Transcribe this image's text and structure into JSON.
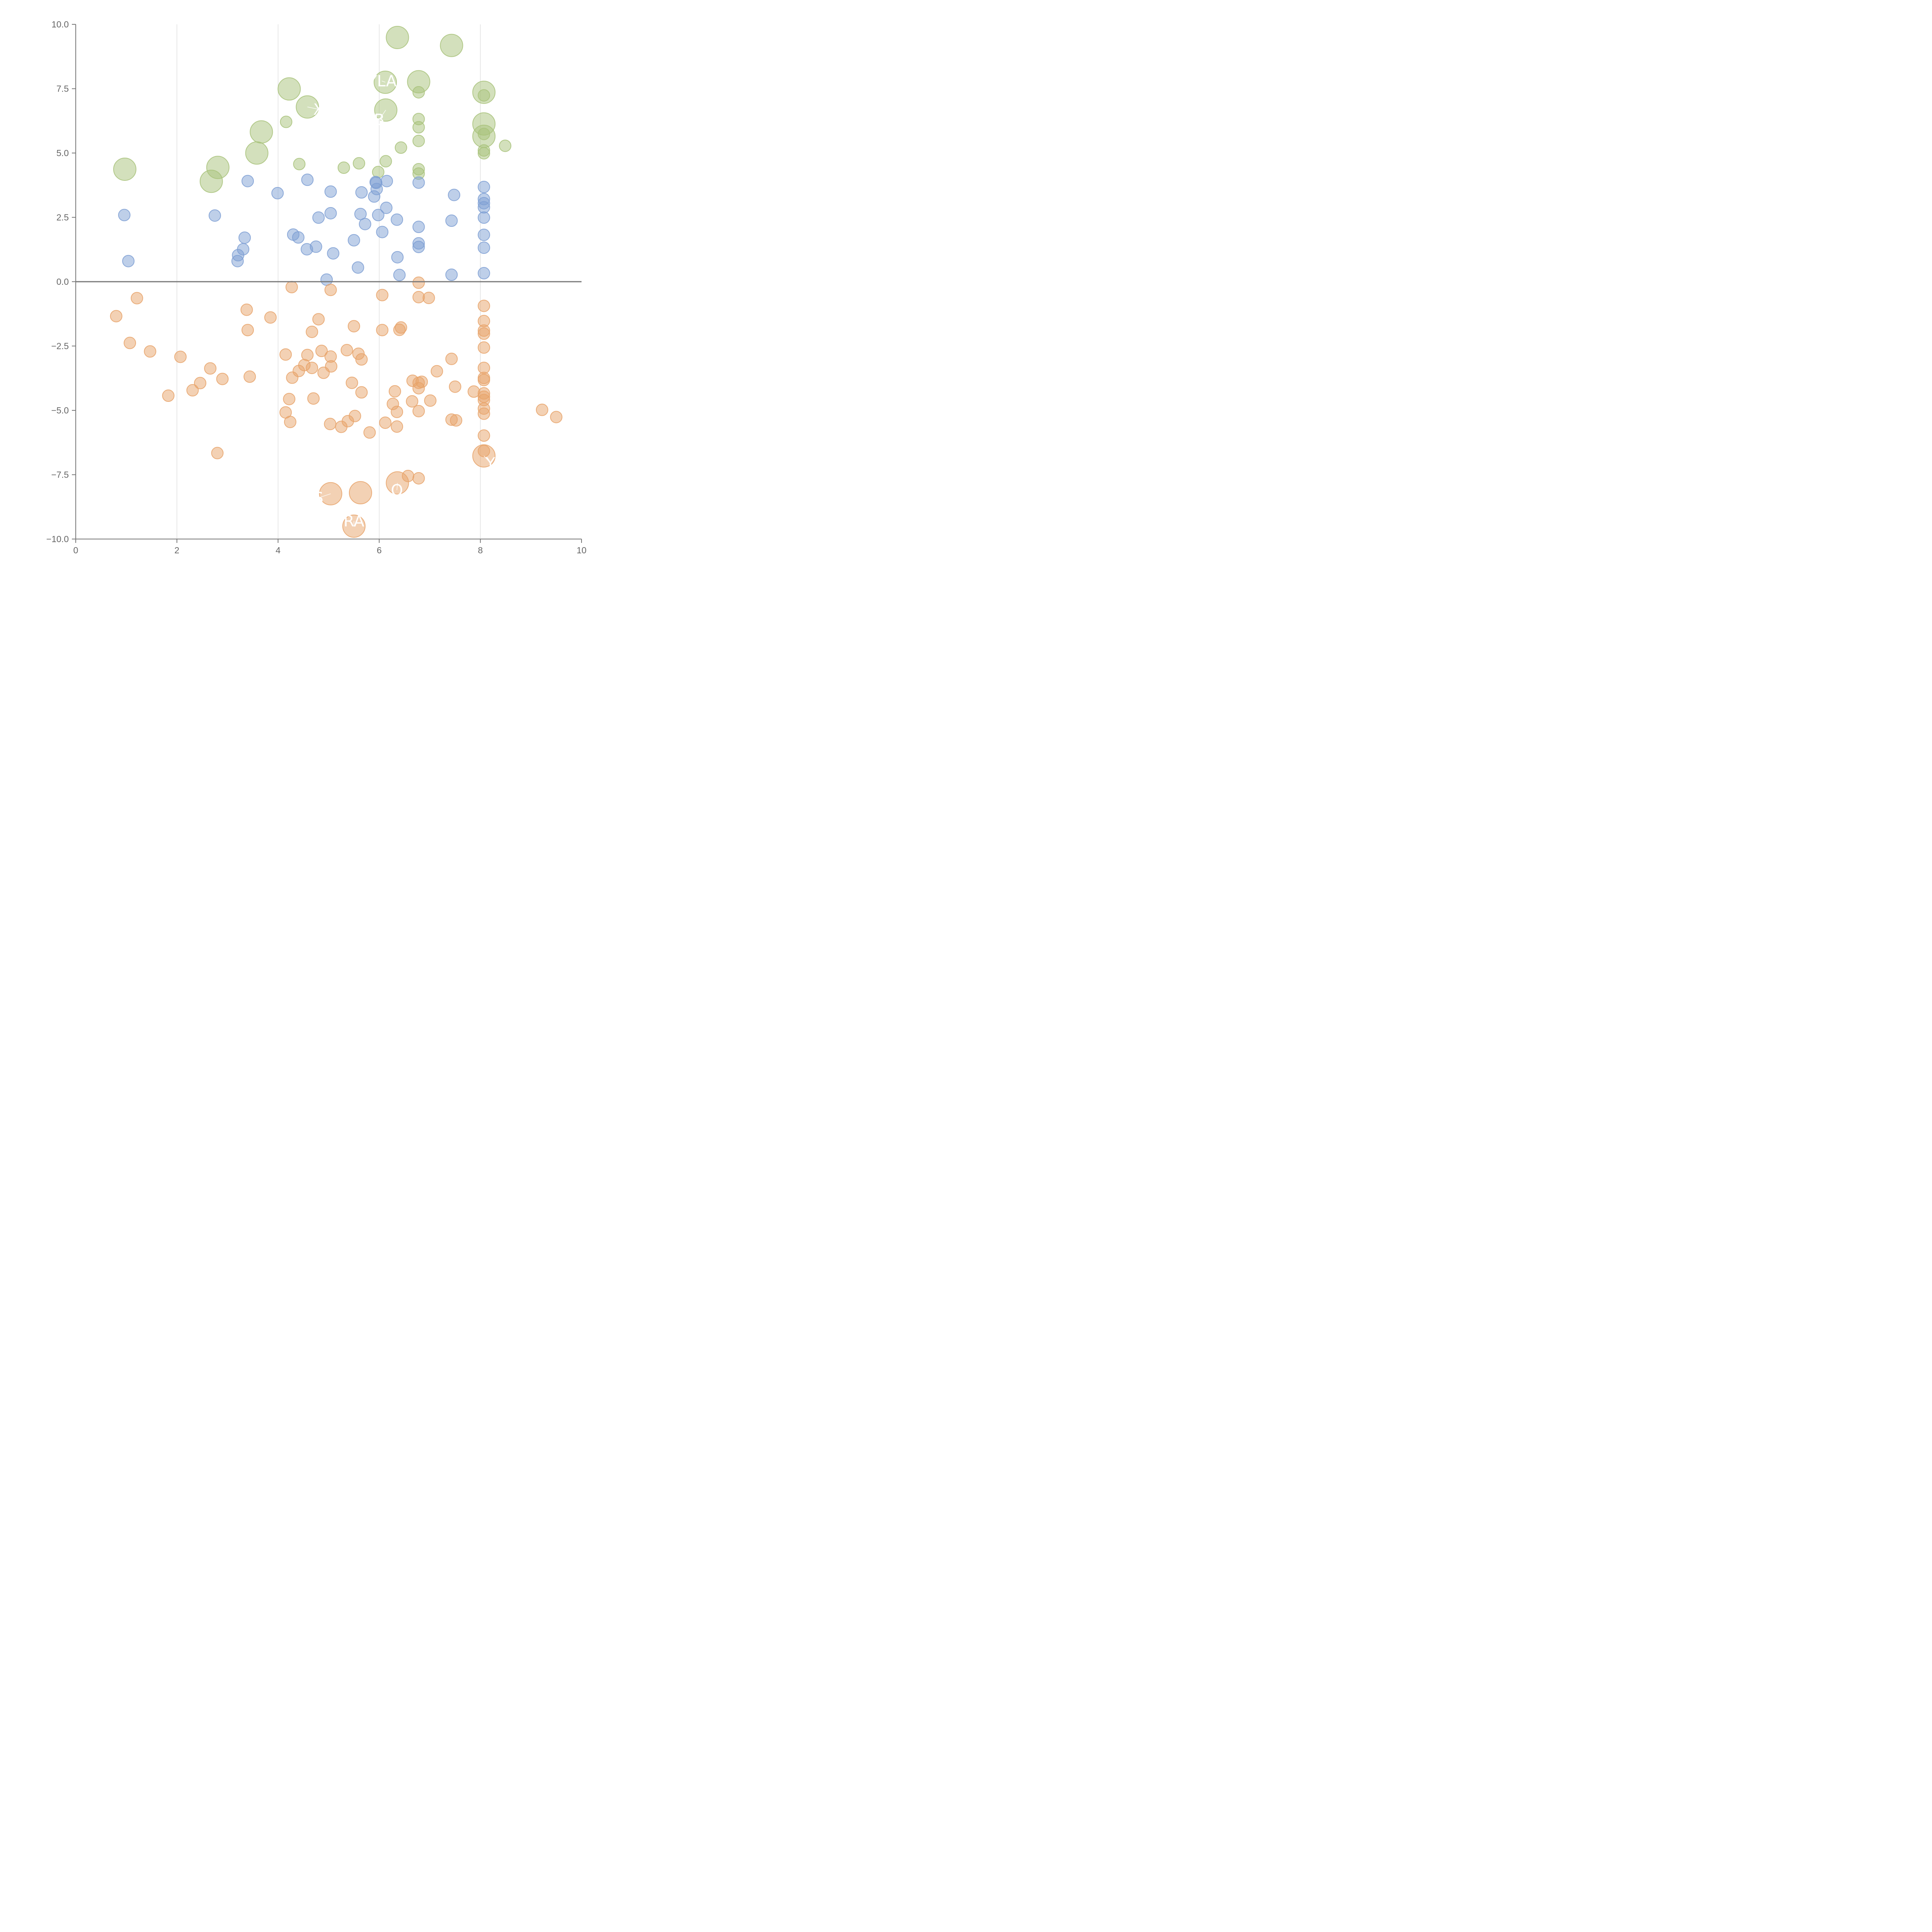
{
  "chart_data": {
    "type": "scatter",
    "xlim": [
      0,
      10
    ],
    "ylim": [
      -10,
      10
    ],
    "x_ticks": [
      0,
      2,
      4,
      6,
      8,
      10
    ],
    "x_tick_labels": [
      "0",
      "2",
      "4",
      "6",
      "8",
      "10"
    ],
    "y_ticks": [
      10,
      7.5,
      5,
      2.5,
      0,
      -2.5,
      -5,
      -7.5,
      -10
    ],
    "y_tick_labels": [
      "10.0",
      "7.5",
      "5.0",
      "2.5",
      "0.0",
      "−2.5",
      "−5.0",
      "−7.5",
      "−10.0"
    ],
    "vertical_grid_at": [
      2,
      4,
      6,
      8
    ],
    "horizontal_reference_line": 0,
    "series": [
      {
        "color": "#a8c27a",
        "points": [
          {
            "x": 0.97,
            "y": 4.37,
            "big": true
          },
          {
            "x": 2.68,
            "y": 3.9,
            "big": true
          },
          {
            "x": 2.81,
            "y": 4.44,
            "big": true
          },
          {
            "x": 3.58,
            "y": 5.0,
            "big": true
          },
          {
            "x": 3.67,
            "y": 5.82,
            "big": true
          },
          {
            "x": 4.16,
            "y": 6.21
          },
          {
            "x": 4.22,
            "y": 7.49,
            "big": true
          },
          {
            "x": 4.42,
            "y": 4.57
          },
          {
            "x": 4.58,
            "y": 6.79,
            "big": true
          },
          {
            "x": 5.3,
            "y": 4.43
          },
          {
            "x": 5.6,
            "y": 4.6
          },
          {
            "x": 5.98,
            "y": 4.26
          },
          {
            "x": 6.12,
            "y": 7.75,
            "big": true
          },
          {
            "x": 6.13,
            "y": 4.68
          },
          {
            "x": 6.13,
            "y": 6.67,
            "big": true
          },
          {
            "x": 6.36,
            "y": 9.49,
            "big": true
          },
          {
            "x": 6.43,
            "y": 5.21
          },
          {
            "x": 6.78,
            "y": 7.36
          },
          {
            "x": 6.78,
            "y": 7.77,
            "big": true
          },
          {
            "x": 6.78,
            "y": 6.32
          },
          {
            "x": 6.78,
            "y": 6.0
          },
          {
            "x": 6.78,
            "y": 5.47
          },
          {
            "x": 6.78,
            "y": 4.37
          },
          {
            "x": 6.78,
            "y": 4.2
          },
          {
            "x": 7.43,
            "y": 9.18,
            "big": true
          },
          {
            "x": 8.07,
            "y": 7.36,
            "big": true
          },
          {
            "x": 8.07,
            "y": 7.24
          },
          {
            "x": 8.07,
            "y": 6.13,
            "big": true
          },
          {
            "x": 8.07,
            "y": 5.65,
            "big": true
          },
          {
            "x": 8.07,
            "y": 5.74
          },
          {
            "x": 8.07,
            "y": 5.1
          },
          {
            "x": 8.07,
            "y": 4.99
          },
          {
            "x": 8.49,
            "y": 5.28
          }
        ]
      },
      {
        "color": "#7e9fd4",
        "points": [
          {
            "x": 0.96,
            "y": 2.59
          },
          {
            "x": 1.04,
            "y": 0.8
          },
          {
            "x": 2.75,
            "y": 2.57
          },
          {
            "x": 3.2,
            "y": 0.8
          },
          {
            "x": 3.21,
            "y": 1.03
          },
          {
            "x": 3.31,
            "y": 1.26
          },
          {
            "x": 3.34,
            "y": 1.71
          },
          {
            "x": 3.4,
            "y": 3.91
          },
          {
            "x": 3.99,
            "y": 3.44
          },
          {
            "x": 4.3,
            "y": 1.83
          },
          {
            "x": 4.4,
            "y": 1.72
          },
          {
            "x": 4.57,
            "y": 1.26
          },
          {
            "x": 4.58,
            "y": 3.96
          },
          {
            "x": 4.75,
            "y": 1.36
          },
          {
            "x": 4.8,
            "y": 2.49
          },
          {
            "x": 4.96,
            "y": 0.08
          },
          {
            "x": 5.04,
            "y": 3.5
          },
          {
            "x": 5.04,
            "y": 2.66
          },
          {
            "x": 5.09,
            "y": 1.1
          },
          {
            "x": 5.5,
            "y": 1.61
          },
          {
            "x": 5.58,
            "y": 0.55
          },
          {
            "x": 5.63,
            "y": 2.63
          },
          {
            "x": 5.65,
            "y": 3.47
          },
          {
            "x": 5.72,
            "y": 2.24
          },
          {
            "x": 5.9,
            "y": 3.31
          },
          {
            "x": 5.93,
            "y": 3.87
          },
          {
            "x": 5.94,
            "y": 3.84
          },
          {
            "x": 5.95,
            "y": 3.6
          },
          {
            "x": 5.98,
            "y": 2.59
          },
          {
            "x": 6.06,
            "y": 1.93
          },
          {
            "x": 6.14,
            "y": 2.87
          },
          {
            "x": 6.15,
            "y": 3.91
          },
          {
            "x": 6.35,
            "y": 2.41
          },
          {
            "x": 6.36,
            "y": 0.95
          },
          {
            "x": 6.4,
            "y": 0.26
          },
          {
            "x": 6.78,
            "y": 3.85
          },
          {
            "x": 6.78,
            "y": 2.13
          },
          {
            "x": 6.78,
            "y": 1.49
          },
          {
            "x": 6.78,
            "y": 1.35
          },
          {
            "x": 7.43,
            "y": 2.37
          },
          {
            "x": 7.43,
            "y": 0.27
          },
          {
            "x": 7.48,
            "y": 3.37
          },
          {
            "x": 8.07,
            "y": 3.68
          },
          {
            "x": 8.07,
            "y": 3.21
          },
          {
            "x": 8.07,
            "y": 3.05
          },
          {
            "x": 8.07,
            "y": 2.89
          },
          {
            "x": 8.07,
            "y": 2.49
          },
          {
            "x": 8.07,
            "y": 1.82
          },
          {
            "x": 8.07,
            "y": 1.32
          },
          {
            "x": 8.07,
            "y": 0.33
          }
        ]
      },
      {
        "color": "#e8a36a",
        "points": [
          {
            "x": 0.8,
            "y": -1.34
          },
          {
            "x": 1.07,
            "y": -2.38
          },
          {
            "x": 1.21,
            "y": -0.64
          },
          {
            "x": 1.47,
            "y": -2.71
          },
          {
            "x": 1.83,
            "y": -4.43
          },
          {
            "x": 2.07,
            "y": -2.92
          },
          {
            "x": 2.31,
            "y": -4.22
          },
          {
            "x": 2.46,
            "y": -3.94
          },
          {
            "x": 2.66,
            "y": -3.37
          },
          {
            "x": 2.8,
            "y": -6.66
          },
          {
            "x": 2.9,
            "y": -3.78
          },
          {
            "x": 3.38,
            "y": -1.09
          },
          {
            "x": 3.4,
            "y": -1.88
          },
          {
            "x": 3.44,
            "y": -3.69
          },
          {
            "x": 3.85,
            "y": -1.39
          },
          {
            "x": 4.15,
            "y": -2.83
          },
          {
            "x": 4.15,
            "y": -5.08
          },
          {
            "x": 4.22,
            "y": -4.56
          },
          {
            "x": 4.24,
            "y": -5.45
          },
          {
            "x": 4.27,
            "y": -0.21
          },
          {
            "x": 4.28,
            "y": -3.73
          },
          {
            "x": 4.41,
            "y": -3.47
          },
          {
            "x": 4.52,
            "y": -3.24
          },
          {
            "x": 4.58,
            "y": -2.85
          },
          {
            "x": 4.67,
            "y": -3.35
          },
          {
            "x": 4.67,
            "y": -1.95
          },
          {
            "x": 4.7,
            "y": -4.54
          },
          {
            "x": 4.8,
            "y": -1.46
          },
          {
            "x": 4.86,
            "y": -2.69
          },
          {
            "x": 4.9,
            "y": -3.54
          },
          {
            "x": 5.03,
            "y": -5.53
          },
          {
            "x": 5.04,
            "y": -2.91
          },
          {
            "x": 5.05,
            "y": -3.29
          },
          {
            "x": 5.04,
            "y": -0.32
          },
          {
            "x": 5.04,
            "y": -8.24,
            "big": true
          },
          {
            "x": 5.25,
            "y": -5.64
          },
          {
            "x": 5.36,
            "y": -2.66
          },
          {
            "x": 5.38,
            "y": -5.42
          },
          {
            "x": 5.46,
            "y": -3.93
          },
          {
            "x": 5.5,
            "y": -1.73
          },
          {
            "x": 5.5,
            "y": -9.5,
            "big": true
          },
          {
            "x": 5.52,
            "y": -5.22
          },
          {
            "x": 5.59,
            "y": -2.8
          },
          {
            "x": 5.63,
            "y": -8.2,
            "big": true
          },
          {
            "x": 5.65,
            "y": -3.02
          },
          {
            "x": 5.65,
            "y": -4.3
          },
          {
            "x": 5.81,
            "y": -5.86
          },
          {
            "x": 6.06,
            "y": -0.52
          },
          {
            "x": 6.06,
            "y": -1.88
          },
          {
            "x": 6.12,
            "y": -5.48
          },
          {
            "x": 6.27,
            "y": -4.75
          },
          {
            "x": 6.31,
            "y": -4.26
          },
          {
            "x": 6.35,
            "y": -5.06
          },
          {
            "x": 6.35,
            "y": -5.63
          },
          {
            "x": 6.36,
            "y": -7.82,
            "big": true
          },
          {
            "x": 6.4,
            "y": -1.87
          },
          {
            "x": 6.43,
            "y": -1.78
          },
          {
            "x": 6.57,
            "y": -7.55
          },
          {
            "x": 6.65,
            "y": -4.65
          },
          {
            "x": 6.66,
            "y": -3.85
          },
          {
            "x": 6.78,
            "y": -0.04
          },
          {
            "x": 6.78,
            "y": -0.6
          },
          {
            "x": 6.78,
            "y": -3.93
          },
          {
            "x": 6.78,
            "y": -4.14
          },
          {
            "x": 6.78,
            "y": -5.03
          },
          {
            "x": 6.78,
            "y": -7.64
          },
          {
            "x": 6.84,
            "y": -3.89
          },
          {
            "x": 6.98,
            "y": -0.63
          },
          {
            "x": 7.01,
            "y": -4.62
          },
          {
            "x": 7.14,
            "y": -3.48
          },
          {
            "x": 7.43,
            "y": -3.0
          },
          {
            "x": 7.43,
            "y": -5.36
          },
          {
            "x": 7.5,
            "y": -4.08
          },
          {
            "x": 7.52,
            "y": -5.39
          },
          {
            "x": 7.87,
            "y": -4.27
          },
          {
            "x": 8.07,
            "y": -0.94
          },
          {
            "x": 8.07,
            "y": -1.53
          },
          {
            "x": 8.07,
            "y": -1.9
          },
          {
            "x": 8.07,
            "y": -2.02
          },
          {
            "x": 8.07,
            "y": -2.56
          },
          {
            "x": 8.07,
            "y": -3.35
          },
          {
            "x": 8.07,
            "y": -3.74
          },
          {
            "x": 8.07,
            "y": -3.82
          },
          {
            "x": 8.07,
            "y": -4.34
          },
          {
            "x": 8.07,
            "y": -4.47
          },
          {
            "x": 8.07,
            "y": -4.6
          },
          {
            "x": 8.07,
            "y": -4.93
          },
          {
            "x": 8.07,
            "y": -5.13
          },
          {
            "x": 8.07,
            "y": -5.98
          },
          {
            "x": 8.07,
            "y": -6.58
          },
          {
            "x": 8.07,
            "y": -6.77,
            "big": true
          },
          {
            "x": 9.22,
            "y": -4.98
          },
          {
            "x": 9.5,
            "y": -5.26
          }
        ]
      }
    ],
    "annotations": [
      {
        "text": "OYLAX",
        "x": 6.12,
        "y": 7.75,
        "tx": 6.05,
        "ty": 7.8
      },
      {
        "text": "X",
        "x": 4.58,
        "y": 6.79,
        "tx": 4.8,
        "ty": 6.7
      },
      {
        "text": "B",
        "x": 6.13,
        "y": 6.67,
        "tx": 6.0,
        "ty": 6.3
      },
      {
        "text": "RA",
        "x": 5.5,
        "y": -9.5,
        "tx": 5.5,
        "ty": -9.3
      },
      {
        "text": "S",
        "x": 5.04,
        "y": -8.24,
        "tx": 4.8,
        "ty": -8.4
      },
      {
        "text": "O",
        "x": 6.36,
        "y": -7.82,
        "tx": 6.35,
        "ty": -8.1
      },
      {
        "text": "Y",
        "x": 8.07,
        "y": -6.77,
        "tx": 8.2,
        "ty": -7.05
      }
    ]
  }
}
